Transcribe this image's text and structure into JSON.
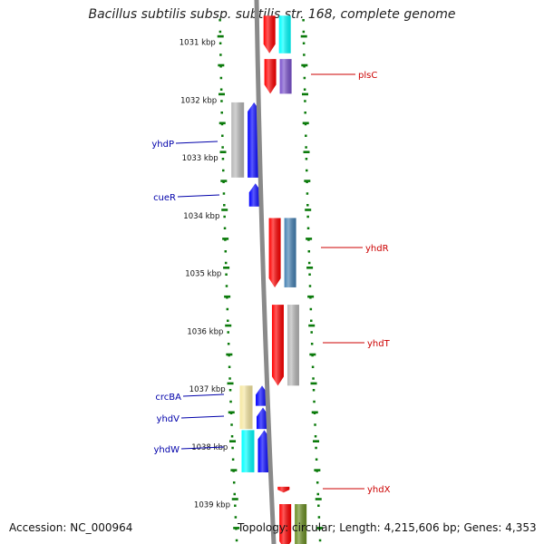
{
  "title": "Bacillus subtilis subsp. subtilis str. 168, complete genome",
  "accession": "Accession: NC_000964",
  "topology": "Topology: circular; Length: 4,215,606 bp; Genes: 4,353",
  "colors": {
    "forward_label": "#cc0000",
    "reverse_label": "#0000aa",
    "backbone": "#8a8a8a",
    "tick": "#0b7a0b"
  },
  "kbp_ticks": [
    "1031 kbp",
    "1032 kbp",
    "1033 kbp",
    "1034 kbp",
    "1035 kbp",
    "1036 kbp",
    "1037 kbp",
    "1038 kbp",
    "1039 kbp"
  ],
  "gene_labels": {
    "forward": [
      "plsC",
      "yhdR",
      "yhdT",
      "yhdX"
    ],
    "reverse": [
      "yhdP",
      "cueR",
      "crcBA",
      "yhdV",
      "yhdW"
    ]
  },
  "features": {
    "forward_genes": [
      {
        "name": "top-cds",
        "color": "#ff0000",
        "kbp_start": 1030.55,
        "kbp_end": 1031.2
      },
      {
        "name": "plsC-cds",
        "color": "#ff0000",
        "kbp_start": 1031.3,
        "kbp_end": 1031.9
      },
      {
        "name": "yhdR-cds",
        "color": "#ff0000",
        "kbp_start": 1034.05,
        "kbp_end": 1035.25
      },
      {
        "name": "yhdT-cds",
        "color": "#ff0000",
        "kbp_start": 1035.55,
        "kbp_end": 1036.95
      },
      {
        "name": "yhdX-cds",
        "color": "#ff0000",
        "kbp_start": 1038.7,
        "kbp_end": 1038.8
      },
      {
        "name": "bottom-cds",
        "color": "#ff0000",
        "kbp_start": 1039.0,
        "kbp_end": 1039.8
      }
    ],
    "forward_annotations": [
      {
        "name": "top-annot",
        "color": "#00ffff",
        "kbp_start": 1030.55,
        "kbp_end": 1031.2
      },
      {
        "name": "plsC-annot",
        "color": "#7b52cc",
        "kbp_start": 1031.3,
        "kbp_end": 1031.9
      },
      {
        "name": "yhdR-annot",
        "color": "#4682b4",
        "kbp_start": 1034.05,
        "kbp_end": 1035.25
      },
      {
        "name": "yhdT-annot",
        "color": "#b8b8b8",
        "kbp_start": 1035.55,
        "kbp_end": 1036.95
      },
      {
        "name": "bottom-annot",
        "color": "#6b8e23",
        "kbp_start": 1039.0,
        "kbp_end": 1039.8
      }
    ],
    "reverse_genes": [
      {
        "name": "yhdP-cds",
        "color": "#0000ff",
        "kbp_start": 1032.05,
        "kbp_end": 1033.35
      },
      {
        "name": "cueR-cds",
        "color": "#0000ff",
        "kbp_start": 1033.45,
        "kbp_end": 1033.85
      },
      {
        "name": "crcBA-cds",
        "color": "#0000ff",
        "kbp_start": 1036.95,
        "kbp_end": 1037.3
      },
      {
        "name": "yhdV-cds",
        "color": "#0000ff",
        "kbp_start": 1037.33,
        "kbp_end": 1037.7
      },
      {
        "name": "yhdW-cds",
        "color": "#0000ff",
        "kbp_start": 1037.72,
        "kbp_end": 1038.45
      }
    ],
    "reverse_annotations": [
      {
        "name": "yhdP-annot",
        "color": "#b8b8b8",
        "kbp_start": 1032.05,
        "kbp_end": 1033.35
      },
      {
        "name": "crcBA-annot",
        "color": "#f5e6a0",
        "kbp_start": 1036.95,
        "kbp_end": 1037.7
      },
      {
        "name": "yhdW-annot",
        "color": "#00ffff",
        "kbp_start": 1037.72,
        "kbp_end": 1038.45
      }
    ]
  }
}
